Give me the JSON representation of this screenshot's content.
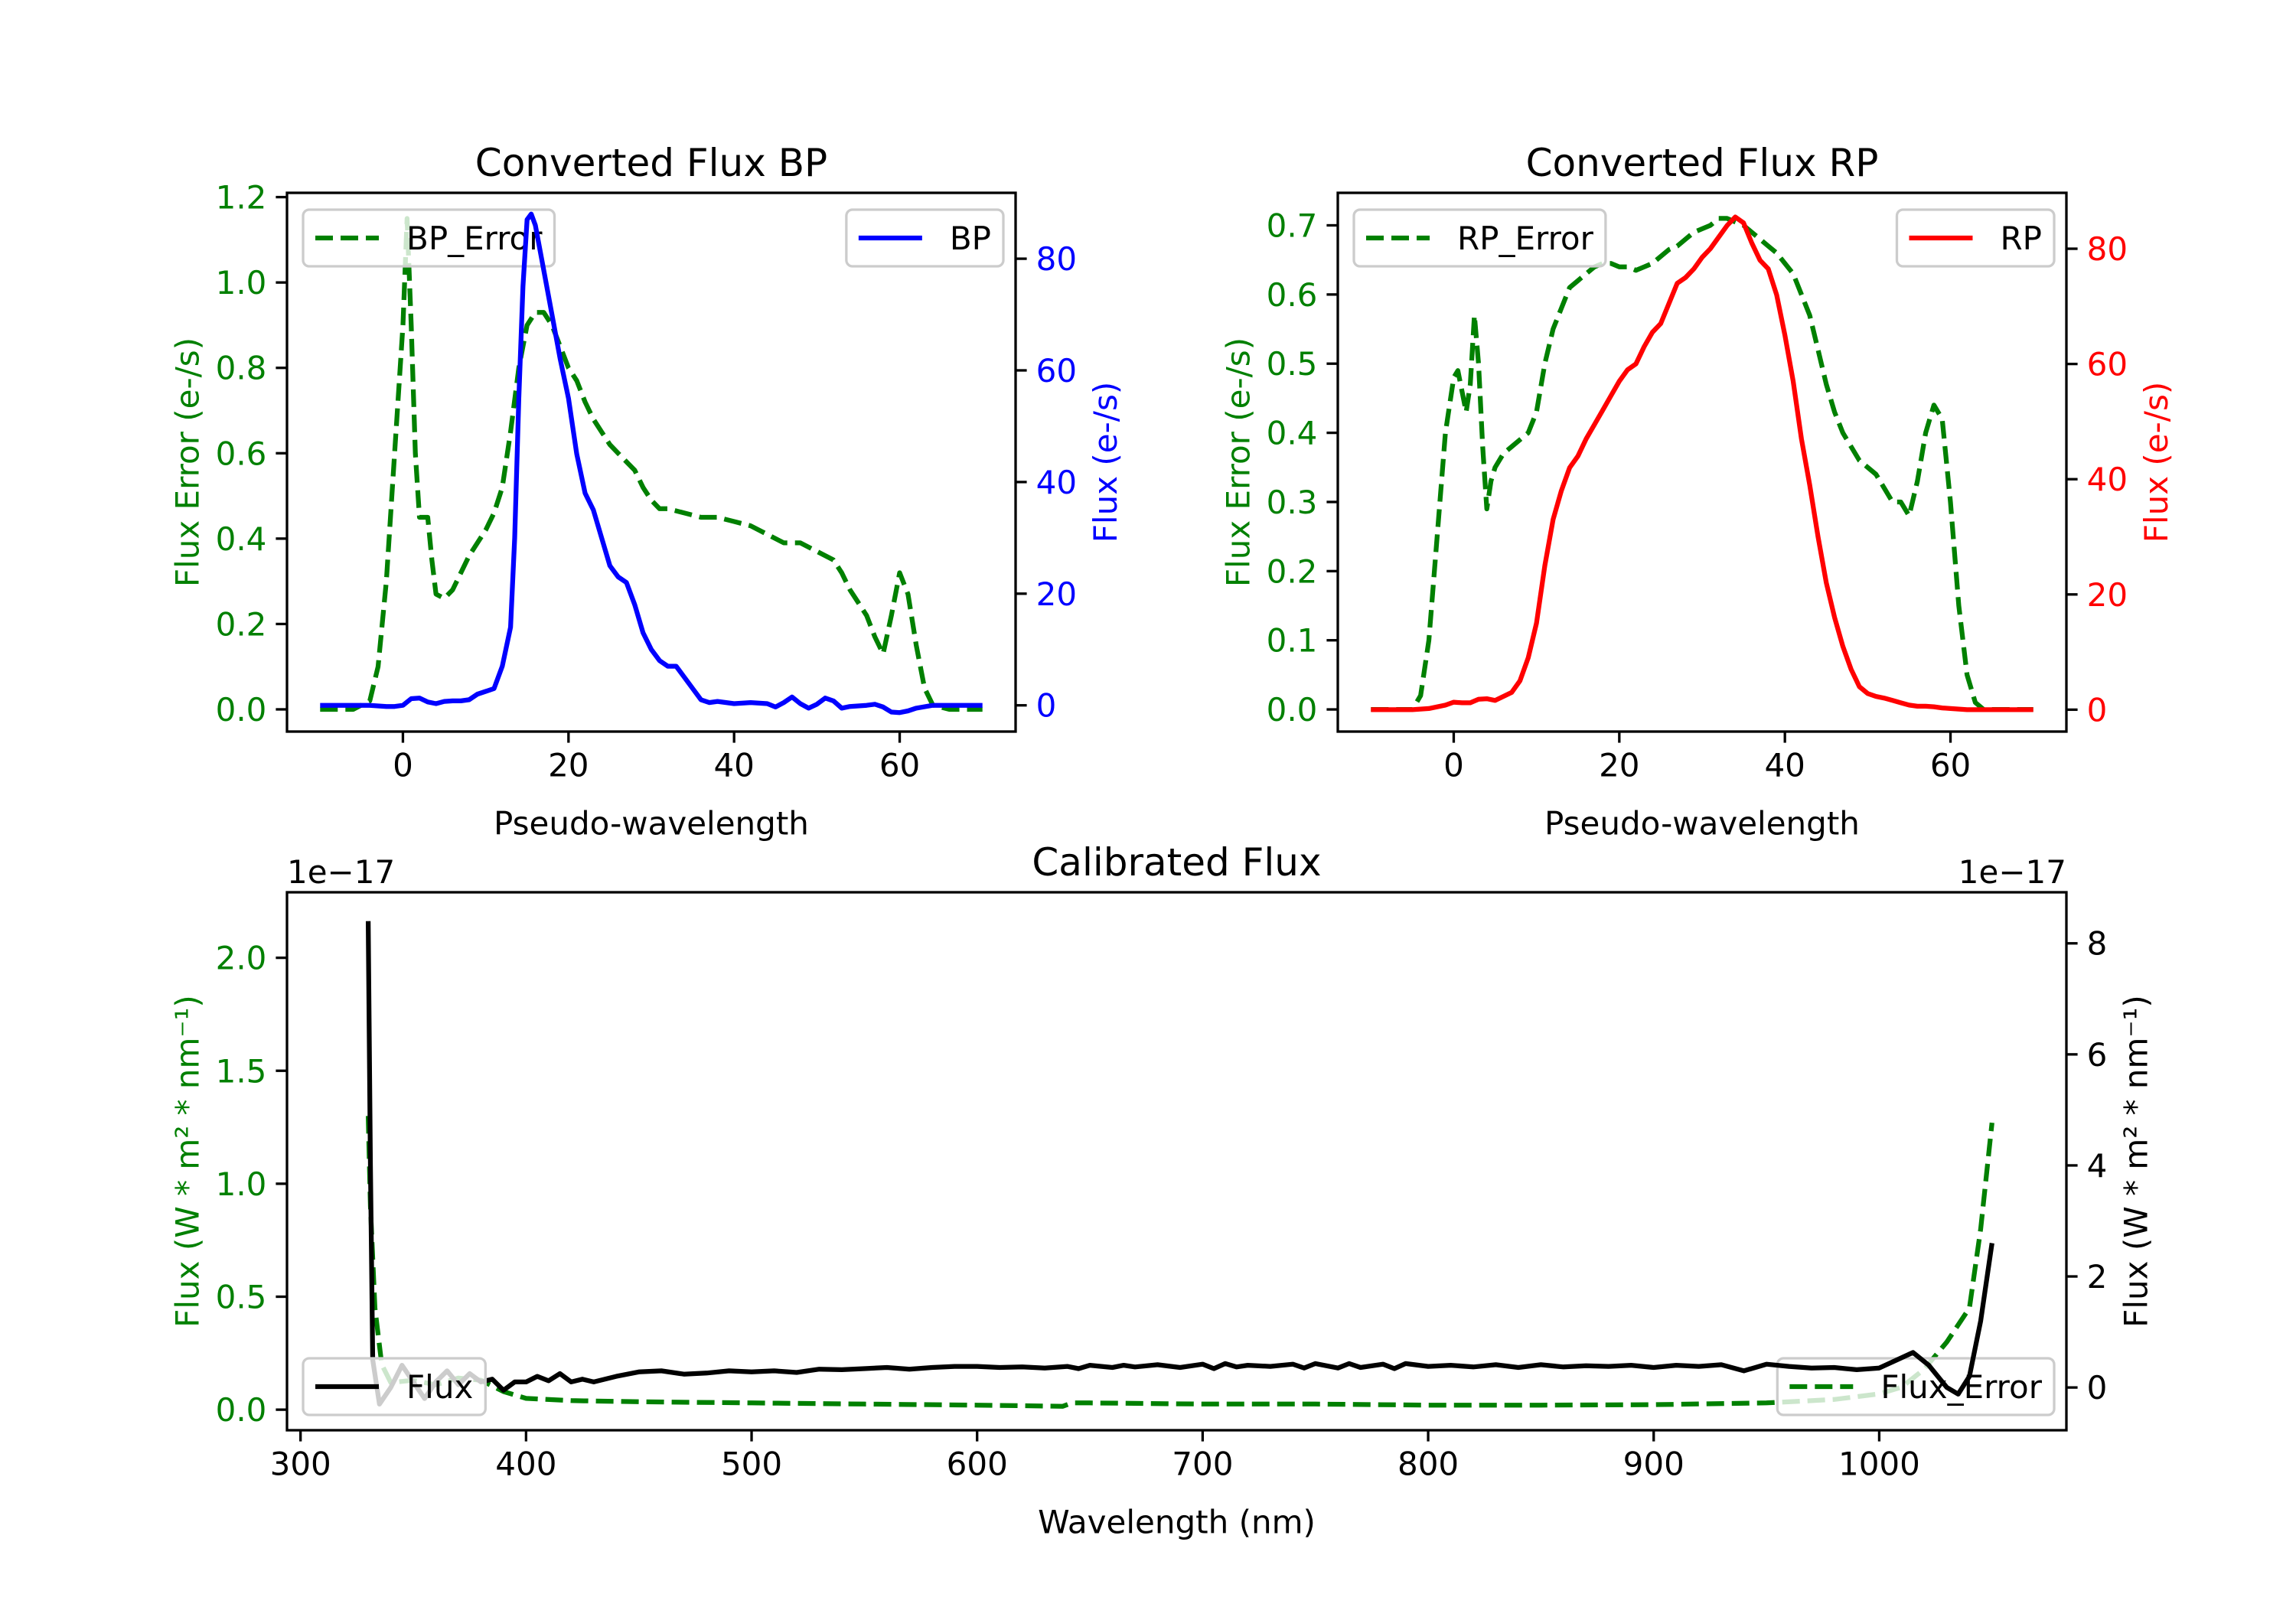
{
  "chart_data": [
    {
      "type": "line",
      "title": "Converted Flux BP",
      "xlabel": "Pseudo-wavelength",
      "xlim": [
        -14,
        74
      ],
      "xticks": [
        0,
        20,
        40,
        60
      ],
      "xtick_labels": [
        "0",
        "20",
        "40",
        "60"
      ],
      "left_axis": {
        "label": "Flux Error (e-/s)",
        "color": "#008000",
        "ylim": [
          -0.052,
          1.21
        ],
        "ticks": [
          0,
          0.2,
          0.4,
          0.6,
          0.8,
          1.0,
          1.2
        ],
        "tick_labels": [
          "0.0",
          "0.2",
          "0.4",
          "0.6",
          "0.8",
          "1.0",
          "1.2"
        ],
        "legend": "upper left"
      },
      "right_axis": {
        "label": "Flux (e-/s)",
        "color": "#0000ff",
        "ylim": [
          -4.7,
          91.8
        ],
        "ticks": [
          0,
          20,
          40,
          60,
          80
        ],
        "tick_labels": [
          "0",
          "20",
          "40",
          "60",
          "80"
        ],
        "legend": "upper right"
      },
      "series": [
        {
          "name": "BP_Error",
          "axis": "left",
          "color": "#008000",
          "style": "dashed",
          "x": [
            -10,
            -6,
            -4,
            -3,
            -2,
            -1,
            0,
            0.5,
            1,
            1.5,
            2,
            3,
            3.5,
            4,
            5,
            6,
            7,
            8,
            9,
            10,
            11,
            12,
            13,
            14,
            15,
            16,
            17,
            18,
            19,
            20,
            21,
            22,
            23,
            24,
            25,
            26,
            27,
            28,
            29,
            30,
            31,
            32,
            34,
            36,
            38,
            40,
            42,
            44,
            46,
            48,
            50,
            52,
            53,
            54,
            55,
            56,
            57,
            58,
            59,
            60,
            61,
            62,
            63,
            64,
            66,
            70
          ],
          "y": [
            0,
            0,
            0.02,
            0.1,
            0.3,
            0.6,
            0.9,
            1.15,
            0.9,
            0.6,
            0.45,
            0.45,
            0.35,
            0.27,
            0.26,
            0.28,
            0.32,
            0.36,
            0.39,
            0.42,
            0.46,
            0.52,
            0.65,
            0.8,
            0.9,
            0.93,
            0.93,
            0.9,
            0.85,
            0.8,
            0.77,
            0.72,
            0.68,
            0.65,
            0.62,
            0.6,
            0.58,
            0.56,
            0.52,
            0.49,
            0.47,
            0.47,
            0.46,
            0.45,
            0.45,
            0.44,
            0.43,
            0.41,
            0.39,
            0.39,
            0.37,
            0.35,
            0.32,
            0.28,
            0.25,
            0.22,
            0.17,
            0.13,
            0.22,
            0.32,
            0.27,
            0.15,
            0.05,
            0.01,
            0,
            0
          ]
        },
        {
          "name": "BP",
          "axis": "right",
          "color": "#0000ff",
          "style": "solid",
          "x": [
            -10,
            -4,
            -2,
            -1,
            0,
            1,
            2,
            3,
            4,
            5,
            6,
            7,
            8,
            9,
            10,
            11,
            12,
            13,
            13.5,
            14,
            14.5,
            15,
            15.5,
            16,
            17,
            18,
            19,
            20,
            21,
            22,
            23,
            24,
            25,
            26,
            27,
            28,
            29,
            30,
            31,
            32,
            33,
            34,
            35,
            36,
            37,
            38,
            40,
            42,
            44,
            45,
            46,
            47,
            48,
            49,
            50,
            51,
            52,
            53,
            54,
            56,
            57,
            58,
            59,
            60,
            61,
            62,
            64,
            70
          ],
          "y": [
            0,
            0,
            -0.2,
            -0.2,
            0,
            1.2,
            1.3,
            0.6,
            0.3,
            0.7,
            0.8,
            0.8,
            1,
            2,
            2.5,
            3,
            7,
            14,
            30,
            55,
            75,
            87,
            88,
            86,
            78,
            70,
            62,
            55,
            45,
            38,
            35,
            30,
            25,
            23,
            22,
            18,
            13,
            10,
            8,
            7,
            7,
            5,
            3,
            1,
            0.5,
            0.7,
            0.3,
            0.5,
            0.3,
            -0.3,
            0.5,
            1.5,
            0.3,
            -0.5,
            0.2,
            1.3,
            0.8,
            -0.5,
            -0.2,
            0,
            0.2,
            -0.3,
            -1.2,
            -1.3,
            -1,
            -0.5,
            0,
            0
          ]
        }
      ]
    },
    {
      "type": "line",
      "title": "Converted Flux RP",
      "xlabel": "Pseudo-wavelength",
      "xlim": [
        -14,
        74
      ],
      "xticks": [
        0,
        20,
        40,
        60
      ],
      "xtick_labels": [
        "0",
        "20",
        "40",
        "60"
      ],
      "left_axis": {
        "label": "Flux Error (e-/s)",
        "color": "#008000",
        "ylim": [
          -0.032,
          0.747
        ],
        "ticks": [
          0,
          0.1,
          0.2,
          0.3,
          0.4,
          0.5,
          0.6,
          0.7
        ],
        "tick_labels": [
          "0.0",
          "0.1",
          "0.2",
          "0.3",
          "0.4",
          "0.5",
          "0.6",
          "0.7"
        ],
        "legend": "upper left"
      },
      "right_axis": {
        "label": "Flux (e-/s)",
        "color": "#ff0000",
        "ylim": [
          -3.8,
          89.7
        ],
        "ticks": [
          0,
          20,
          40,
          60,
          80
        ],
        "tick_labels": [
          "0",
          "20",
          "40",
          "60",
          "80"
        ],
        "legend": "upper right"
      },
      "series": [
        {
          "name": "RP_Error",
          "axis": "left",
          "color": "#008000",
          "style": "dashed",
          "x": [
            -10,
            -5,
            -4,
            -3,
            -2,
            -1,
            0,
            0.5,
            1,
            1.5,
            2,
            2.5,
            3,
            3.5,
            4,
            4.5,
            5,
            6,
            7,
            8,
            9,
            10,
            11,
            12,
            13,
            14,
            15,
            16,
            17,
            18,
            19,
            20,
            21,
            22,
            23,
            24,
            25,
            26,
            27,
            28,
            29,
            30,
            31,
            32,
            33,
            34,
            35,
            36,
            37,
            38,
            39,
            40,
            41,
            42,
            43,
            44,
            45,
            46,
            47,
            48,
            49,
            50,
            51,
            52,
            53,
            54,
            55,
            56,
            57,
            58,
            59,
            60,
            61,
            62,
            63,
            64,
            70
          ],
          "y": [
            0,
            0,
            0.02,
            0.1,
            0.25,
            0.4,
            0.48,
            0.49,
            0.46,
            0.43,
            0.47,
            0.57,
            0.5,
            0.38,
            0.29,
            0.33,
            0.35,
            0.37,
            0.38,
            0.39,
            0.4,
            0.43,
            0.5,
            0.55,
            0.58,
            0.61,
            0.62,
            0.63,
            0.64,
            0.645,
            0.645,
            0.64,
            0.64,
            0.635,
            0.64,
            0.645,
            0.655,
            0.665,
            0.67,
            0.68,
            0.69,
            0.695,
            0.7,
            0.71,
            0.71,
            0.705,
            0.7,
            0.69,
            0.68,
            0.67,
            0.66,
            0.645,
            0.63,
            0.6,
            0.57,
            0.52,
            0.47,
            0.43,
            0.4,
            0.38,
            0.36,
            0.35,
            0.34,
            0.32,
            0.3,
            0.3,
            0.28,
            0.33,
            0.4,
            0.44,
            0.42,
            0.3,
            0.15,
            0.05,
            0.01,
            0,
            0
          ]
        },
        {
          "name": "RP",
          "axis": "right",
          "color": "#ff0000",
          "style": "solid",
          "x": [
            -10,
            -5,
            -3,
            -1,
            0,
            1,
            2,
            3,
            4,
            5,
            6,
            7,
            8,
            9,
            10,
            11,
            12,
            13,
            14,
            15,
            16,
            17,
            18,
            19,
            20,
            21,
            22,
            23,
            24,
            25,
            26,
            27,
            28,
            29,
            30,
            31,
            32,
            33,
            34,
            35,
            36,
            37,
            38,
            39,
            40,
            41,
            42,
            43,
            44,
            45,
            46,
            47,
            48,
            49,
            50,
            51,
            52,
            53,
            54,
            55,
            56,
            57,
            58,
            59,
            60,
            61,
            62,
            70
          ],
          "y": [
            0,
            0,
            0.2,
            0.8,
            1.3,
            1.2,
            1.2,
            1.8,
            1.9,
            1.6,
            2.3,
            3,
            5,
            9,
            15,
            25,
            33,
            38,
            42,
            44,
            47,
            49.5,
            52,
            54.5,
            57,
            59,
            60,
            63,
            65.5,
            67,
            70.5,
            74,
            75,
            76.5,
            78.5,
            80,
            82,
            84,
            85.5,
            84.5,
            81,
            78,
            76.5,
            72,
            65,
            57,
            47,
            39,
            30,
            22,
            16,
            11,
            7,
            4,
            2.8,
            2.3,
            2,
            1.6,
            1.2,
            0.8,
            0.6,
            0.6,
            0.5,
            0.3,
            0.2,
            0.1,
            0,
            0
          ]
        }
      ]
    },
    {
      "type": "line",
      "title": "Calibrated Flux",
      "xlabel": "Wavelength (nm)",
      "xlim": [
        294,
        1083
      ],
      "xticks": [
        300,
        400,
        500,
        600,
        700,
        800,
        900,
        1000
      ],
      "xtick_labels": [
        "300",
        "400",
        "500",
        "600",
        "700",
        "800",
        "900",
        "1000"
      ],
      "left_axis": {
        "label": "Flux (W * m² * nm⁻¹)",
        "color": "#008000",
        "offset_text": "1e−17",
        "ylim": [
          -0.091,
          2.29
        ],
        "ticks": [
          0,
          0.5,
          1.0,
          1.5,
          2.0
        ],
        "tick_labels": [
          "0.0",
          "0.5",
          "1.0",
          "1.5",
          "2.0"
        ],
        "legend": "lower right"
      },
      "right_axis": {
        "label": "Flux (W * m² * nm⁻¹)",
        "color": "#000000",
        "offset_text": "1e−17",
        "ylim": [
          -0.77,
          8.92
        ],
        "ticks": [
          0,
          2,
          4,
          6,
          8
        ],
        "tick_labels": [
          "0",
          "2",
          "4",
          "6",
          "8"
        ],
        "legend": "lower left"
      },
      "series": [
        {
          "name": "Flux_Error",
          "axis": "left",
          "color": "#008000",
          "style": "dashed",
          "x": [
            330,
            331,
            333,
            336,
            340,
            350,
            360,
            370,
            380,
            390,
            400,
            420,
            450,
            500,
            550,
            600,
            638,
            642,
            650,
            700,
            750,
            800,
            850,
            900,
            950,
            980,
            1000,
            1010,
            1020,
            1030,
            1040,
            1045,
            1050
          ],
          "y": [
            1.3,
            0.9,
            0.45,
            0.2,
            0.12,
            0.13,
            0.11,
            0.14,
            0.13,
            0.08,
            0.05,
            0.04,
            0.035,
            0.03,
            0.025,
            0.02,
            0.015,
            0.03,
            0.03,
            0.025,
            0.025,
            0.02,
            0.02,
            0.022,
            0.03,
            0.045,
            0.07,
            0.1,
            0.18,
            0.3,
            0.45,
            0.8,
            1.27
          ]
        },
        {
          "name": "Flux",
          "axis": "right",
          "color": "#000000",
          "style": "solid",
          "x": [
            330,
            331,
            332,
            335,
            340,
            345,
            350,
            355,
            360,
            365,
            370,
            375,
            380,
            385,
            390,
            395,
            400,
            405,
            410,
            415,
            420,
            425,
            430,
            440,
            450,
            460,
            470,
            480,
            490,
            500,
            510,
            520,
            530,
            540,
            550,
            560,
            570,
            580,
            590,
            600,
            610,
            620,
            630,
            640,
            645,
            650,
            660,
            665,
            670,
            680,
            690,
            700,
            705,
            710,
            715,
            720,
            730,
            740,
            745,
            750,
            760,
            765,
            770,
            780,
            785,
            790,
            800,
            810,
            820,
            830,
            840,
            850,
            860,
            870,
            880,
            890,
            900,
            910,
            920,
            930,
            940,
            950,
            960,
            970,
            980,
            990,
            1000,
            1008,
            1015,
            1022,
            1030,
            1035,
            1040,
            1045,
            1050
          ],
          "y": [
            8.4,
            4,
            0.5,
            -0.3,
            0,
            0.4,
            0.1,
            -0.2,
            0.1,
            0.3,
            0.05,
            0.25,
            0.1,
            0.15,
            -0.05,
            0.1,
            0.1,
            0.2,
            0.12,
            0.25,
            0.1,
            0.15,
            0.1,
            0.2,
            0.28,
            0.3,
            0.24,
            0.26,
            0.3,
            0.28,
            0.3,
            0.27,
            0.33,
            0.32,
            0.34,
            0.36,
            0.33,
            0.36,
            0.38,
            0.38,
            0.36,
            0.37,
            0.35,
            0.38,
            0.34,
            0.4,
            0.36,
            0.4,
            0.37,
            0.41,
            0.36,
            0.42,
            0.34,
            0.43,
            0.37,
            0.4,
            0.38,
            0.42,
            0.35,
            0.43,
            0.35,
            0.43,
            0.36,
            0.42,
            0.34,
            0.43,
            0.38,
            0.4,
            0.37,
            0.41,
            0.36,
            0.41,
            0.37,
            0.39,
            0.38,
            0.4,
            0.36,
            0.4,
            0.38,
            0.41,
            0.3,
            0.42,
            0.38,
            0.35,
            0.36,
            0.32,
            0.35,
            0.5,
            0.63,
            0.4,
            0.0,
            -0.12,
            0.2,
            1.2,
            2.6
          ]
        }
      ]
    }
  ]
}
